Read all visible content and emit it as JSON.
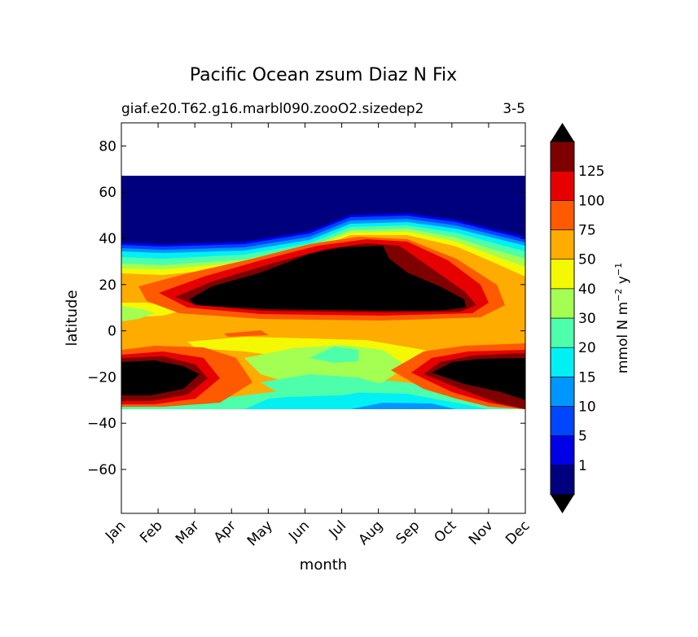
{
  "chart_data": {
    "type": "heatmap",
    "title": "Pacific Ocean zsum Diaz N Fix",
    "subtitle_left": "giaf.e20.T62.g16.marbl090.zooO2.sizedep2",
    "subtitle_right": "3-5",
    "xlabel": "month",
    "ylabel": "latitude",
    "x_ticks": [
      "Jan",
      "Feb",
      "Mar",
      "Apr",
      "May",
      "Jun",
      "Jul",
      "Aug",
      "Sep",
      "Oct",
      "Nov",
      "Dec"
    ],
    "y_ticks": [
      80,
      60,
      40,
      20,
      0,
      -20,
      -40,
      -60
    ],
    "ylim": [
      -79,
      90
    ],
    "data_lat_range": [
      -34,
      67
    ],
    "colorbar": {
      "label": "mmol N m",
      "label_sup1": "−2",
      "label_mid": " y",
      "label_sup2": "−1",
      "levels": [
        "1",
        "5",
        "10",
        "15",
        "20",
        "30",
        "40",
        "50",
        "75",
        "100",
        "125"
      ],
      "colors": [
        "#00007f",
        "#0000e6",
        "#0046ff",
        "#0096ff",
        "#00f0f4",
        "#4dffaa",
        "#a4ff53",
        "#f4f802",
        "#ffac00",
        "#ff5a00",
        "#e60000",
        "#7f0000"
      ],
      "extend_min_color": "#000000",
      "extend_max_color": "#000000"
    },
    "colors": {
      "blackfill": "#000000"
    }
  }
}
